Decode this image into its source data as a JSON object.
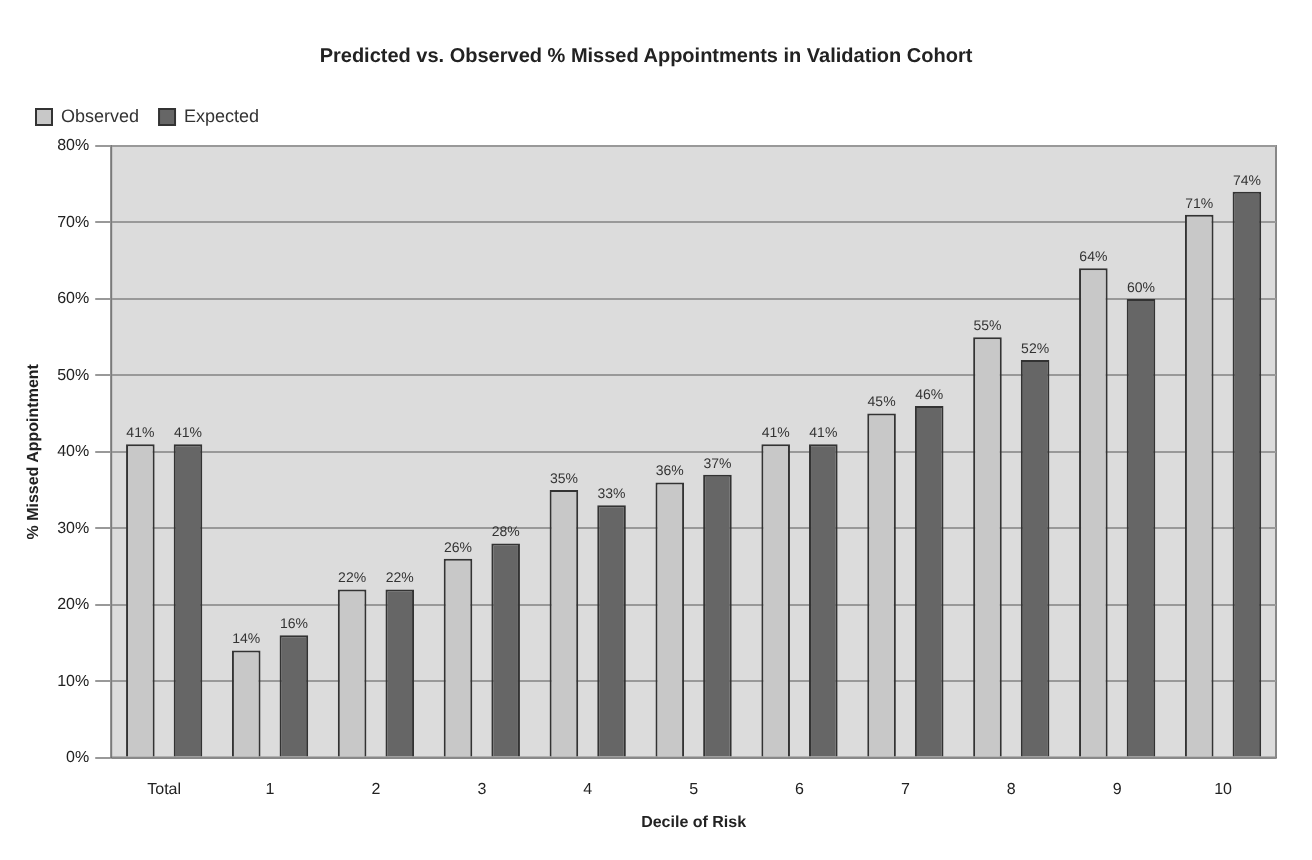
{
  "chart_data": {
    "type": "bar",
    "title": "Predicted vs. Observed % Missed Appointments in Validation Cohort",
    "xlabel": "Decile of Risk",
    "ylabel": "% Missed Appointment",
    "categories": [
      "Total",
      "1",
      "2",
      "3",
      "4",
      "5",
      "6",
      "7",
      "8",
      "9",
      "10"
    ],
    "series": [
      {
        "name": "Observed",
        "color": "#c8c8c8",
        "values": [
          41,
          14,
          22,
          26,
          35,
          36,
          41,
          45,
          55,
          64,
          71
        ],
        "value_labels": [
          "41%",
          "14%",
          "22%",
          "26%",
          "35%",
          "36%",
          "41%",
          "45%",
          "55%",
          "64%",
          "71%"
        ]
      },
      {
        "name": "Expected",
        "color": "#666666",
        "values": [
          41,
          16,
          22,
          28,
          33,
          37,
          41,
          46,
          52,
          60,
          74
        ],
        "value_labels": [
          "41%",
          "16%",
          "22%",
          "28%",
          "33%",
          "37%",
          "41%",
          "46%",
          "52%",
          "60%",
          "74%"
        ]
      }
    ],
    "ylim": [
      0,
      80
    ],
    "yticks": [
      {
        "value": 0,
        "label": "0%"
      },
      {
        "value": 10,
        "label": "10%"
      },
      {
        "value": 20,
        "label": "20%"
      },
      {
        "value": 30,
        "label": "30%"
      },
      {
        "value": 40,
        "label": "40%"
      },
      {
        "value": 50,
        "label": "50%"
      },
      {
        "value": 60,
        "label": "60%"
      },
      {
        "value": 70,
        "label": "70%"
      },
      {
        "value": 80,
        "label": "80%"
      }
    ],
    "grid": "y",
    "legend": "top left"
  }
}
